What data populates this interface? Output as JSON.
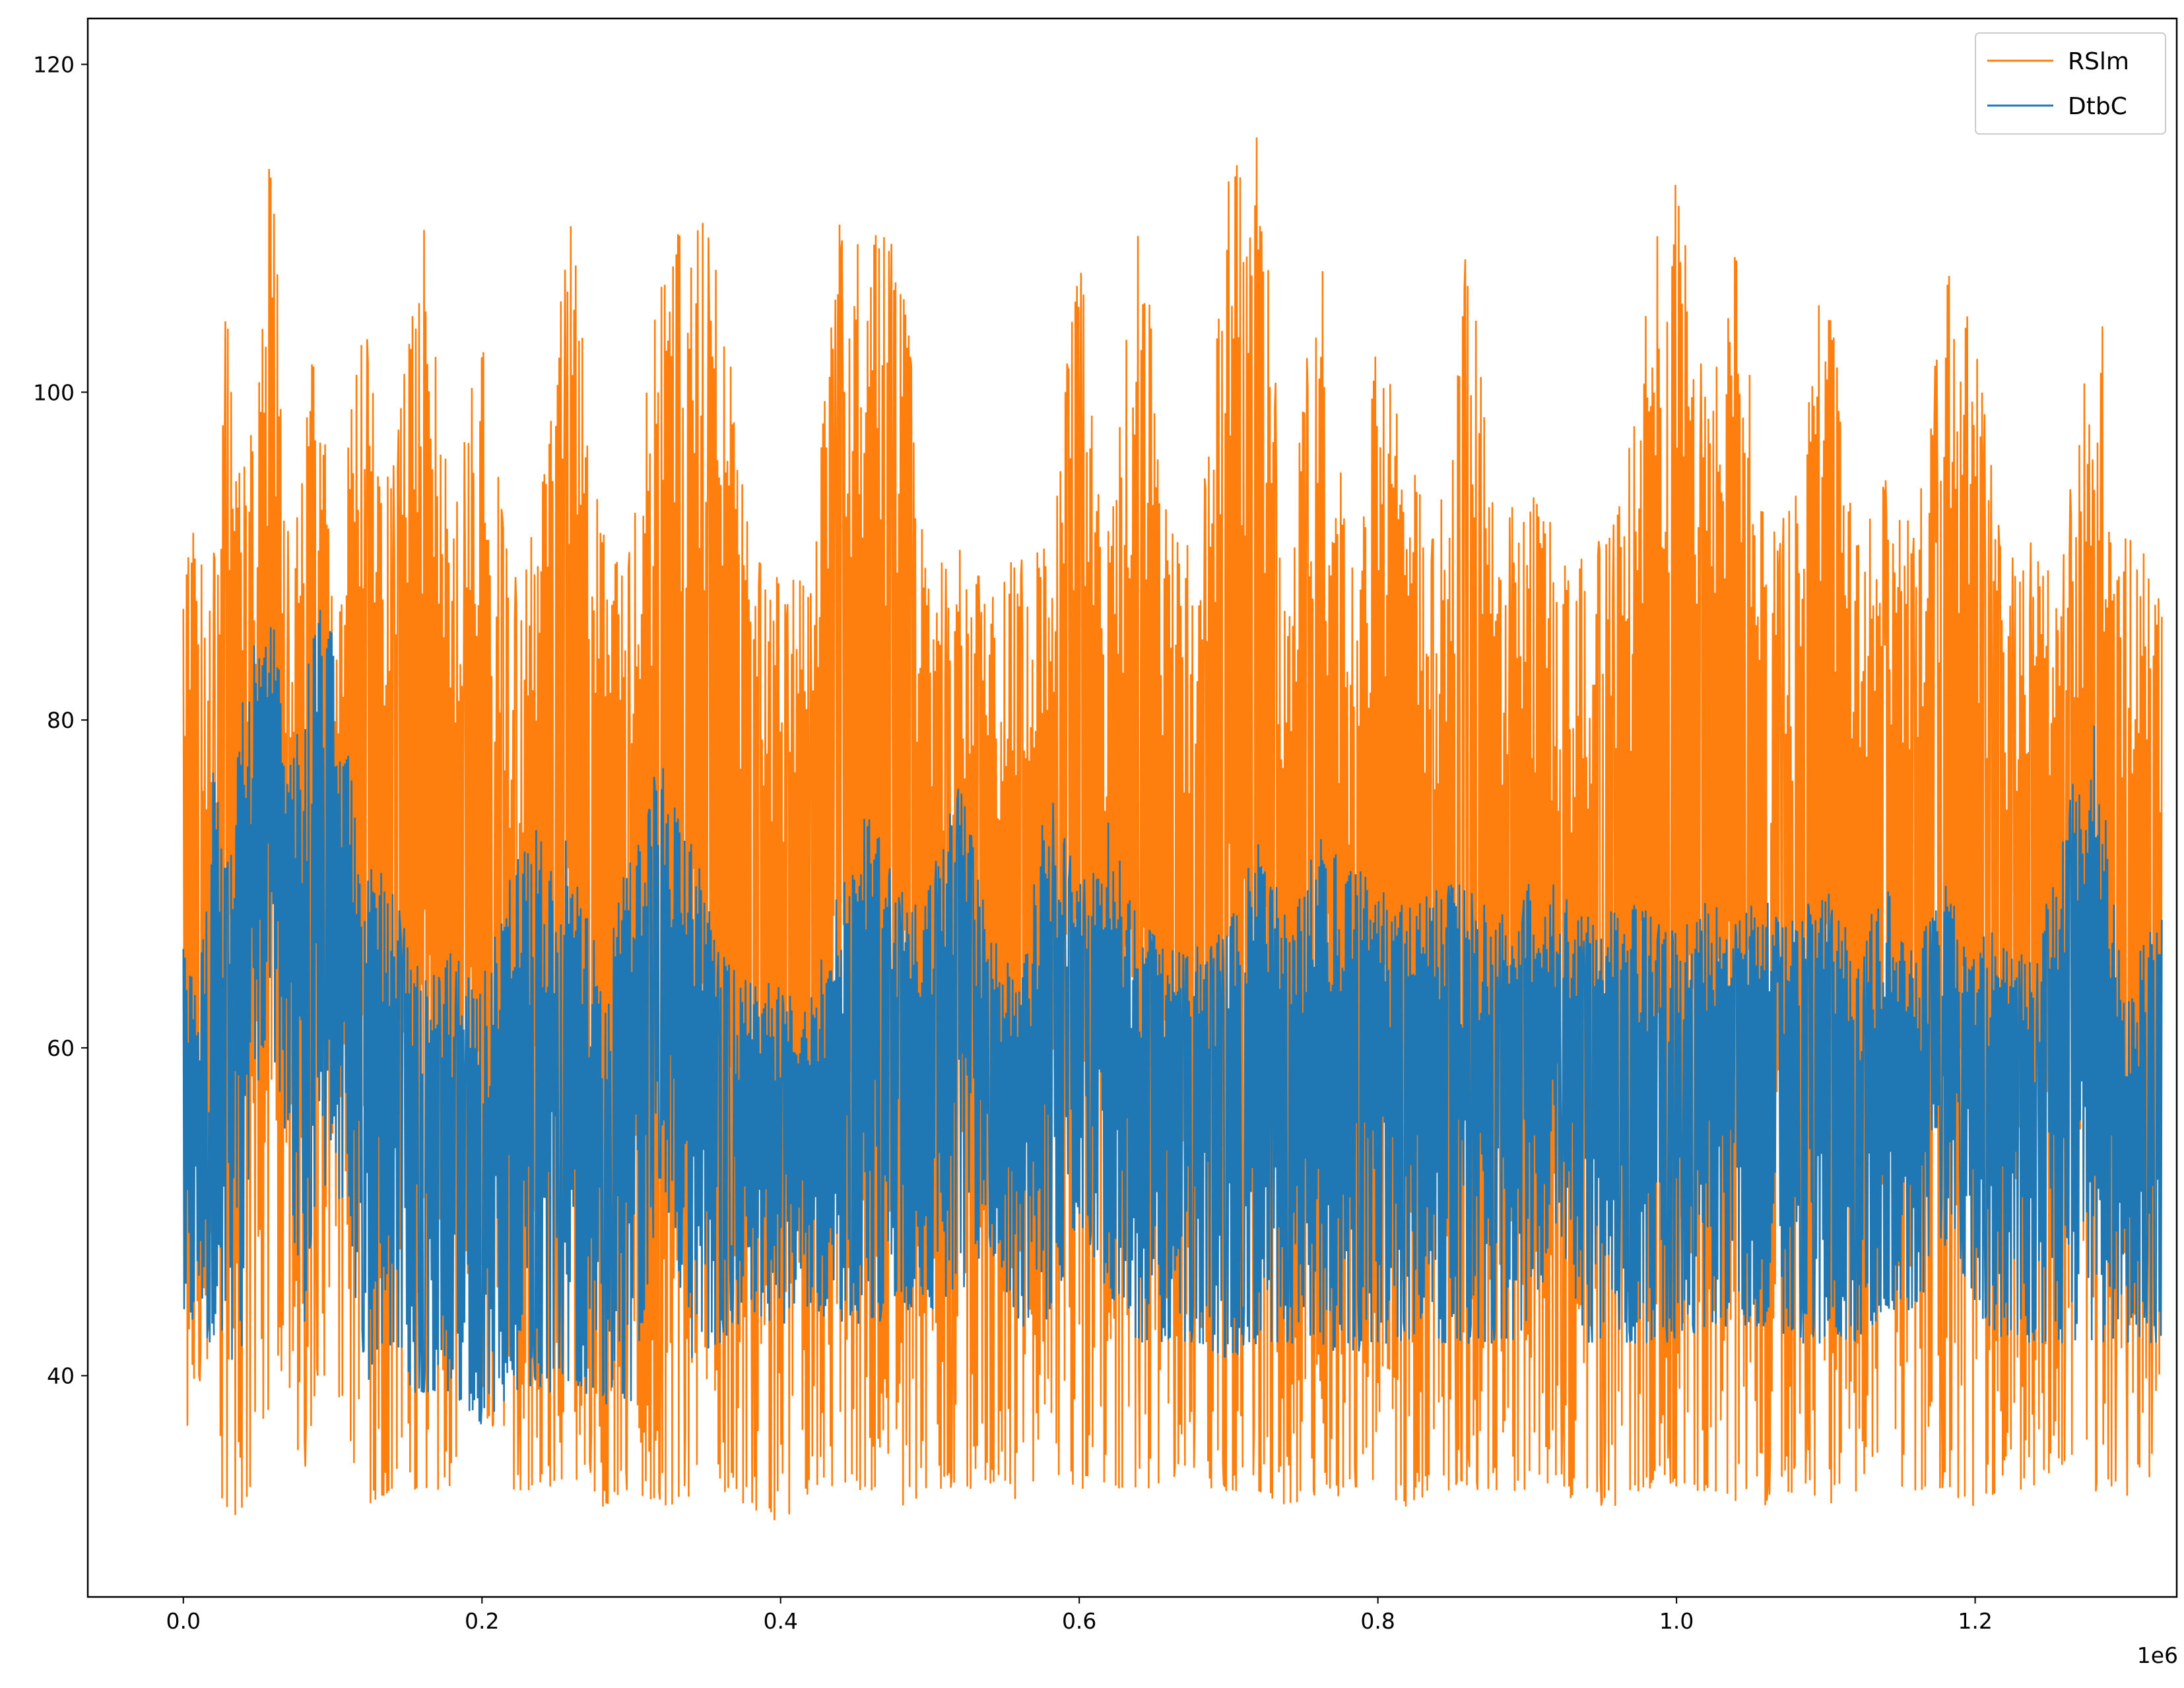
{
  "chart_data": {
    "type": "line",
    "title": "",
    "xlabel": "",
    "ylabel": "",
    "x_offset_label": "1e6",
    "xlim": [
      -0.064,
      1.335
    ],
    "ylim": [
      26.5,
      122.8
    ],
    "x_ticks": [
      0.0,
      0.2,
      0.4,
      0.6,
      0.8,
      1.0,
      1.2
    ],
    "x_tick_labels": [
      "0.0",
      "0.2",
      "0.4",
      "0.6",
      "0.8",
      "1.0",
      "1.2"
    ],
    "y_ticks": [
      40,
      60,
      80,
      100,
      120
    ],
    "y_tick_labels": [
      "40",
      "60",
      "80",
      "100",
      "120"
    ],
    "x_range": [
      0.0,
      1.325
    ],
    "grid": false,
    "legend_position": "upper right",
    "colors": {
      "RSlm": "#ff7f0e",
      "DtbC": "#1f77b4"
    },
    "series": [
      {
        "name": "RSlm",
        "description_x": "x (×1e6)",
        "x": [
          0.0,
          0.01,
          0.02,
          0.03,
          0.04,
          0.05,
          0.06,
          0.07,
          0.08,
          0.09,
          0.1,
          0.12,
          0.14,
          0.16,
          0.18,
          0.2,
          0.22,
          0.24,
          0.26,
          0.28,
          0.3,
          0.32,
          0.34,
          0.36,
          0.38,
          0.4,
          0.42,
          0.44,
          0.46,
          0.48,
          0.5,
          0.52,
          0.54,
          0.56,
          0.58,
          0.6,
          0.62,
          0.64,
          0.66,
          0.68,
          0.7,
          0.72,
          0.74,
          0.76,
          0.78,
          0.8,
          0.82,
          0.84,
          0.86,
          0.88,
          0.9,
          0.92,
          0.94,
          0.96,
          0.98,
          1.0,
          1.02,
          1.04,
          1.06,
          1.08,
          1.1,
          1.12,
          1.14,
          1.16,
          1.18,
          1.2,
          1.22,
          1.24,
          1.26,
          1.28,
          1.3,
          1.32
        ],
        "upper": [
          91,
          92,
          90,
          109,
          98,
          102,
          118,
          92,
          95,
          109,
          88,
          107,
          95,
          111,
          93,
          105,
          88,
          94,
          112,
          92,
          91,
          110,
          112,
          108,
          90,
          89,
          89,
          111,
          110,
          110,
          89,
          91,
          89,
          90,
          91,
          110,
          91,
          113,
          92,
          91,
          113,
          117,
          89,
          112,
          90,
          104,
          97,
          92,
          110,
          91,
          96,
          91,
          91,
          92,
          108,
          113,
          100,
          110,
          91,
          94,
          109,
          91,
          96,
          91,
          108,
          104,
          90,
          91,
          91,
          109,
          91,
          92
        ],
        "lower": [
          33,
          40,
          33,
          31,
          32,
          33,
          40,
          40,
          32,
          40,
          40,
          32,
          33,
          33,
          33,
          38,
          33,
          33,
          34,
          32,
          33,
          32,
          32,
          33,
          32,
          31,
          33,
          33,
          33,
          32,
          33,
          33,
          33,
          32,
          33,
          33,
          33,
          33,
          33,
          33,
          33,
          33,
          32,
          32,
          33,
          33,
          32,
          33,
          33,
          33,
          33,
          33,
          32,
          32,
          33,
          33,
          33,
          32,
          32,
          33,
          32,
          32,
          33,
          33,
          33,
          32,
          33,
          33,
          34,
          33,
          32,
          34
        ]
      },
      {
        "name": "DtbC",
        "description_x": "x (×1e6)",
        "x": [
          0.0,
          0.01,
          0.02,
          0.03,
          0.04,
          0.05,
          0.06,
          0.07,
          0.08,
          0.09,
          0.1,
          0.12,
          0.14,
          0.16,
          0.18,
          0.2,
          0.22,
          0.24,
          0.26,
          0.28,
          0.3,
          0.32,
          0.34,
          0.36,
          0.38,
          0.4,
          0.42,
          0.44,
          0.46,
          0.48,
          0.5,
          0.52,
          0.54,
          0.56,
          0.58,
          0.6,
          0.62,
          0.64,
          0.66,
          0.68,
          0.7,
          0.72,
          0.74,
          0.76,
          0.78,
          0.8,
          0.82,
          0.84,
          0.86,
          0.88,
          0.9,
          0.92,
          0.94,
          0.96,
          0.98,
          1.0,
          1.02,
          1.04,
          1.06,
          1.08,
          1.1,
          1.12,
          1.14,
          1.16,
          1.18,
          1.2,
          1.22,
          1.24,
          1.26,
          1.28,
          1.3,
          1.32
        ],
        "upper": [
          69,
          63,
          77,
          72,
          83,
          86,
          86,
          80,
          82,
          87,
          86,
          72,
          70,
          64,
          66,
          64,
          71,
          74,
          73,
          65,
          73,
          78,
          73,
          66,
          64,
          64,
          63,
          70,
          75,
          70,
          70,
          77,
          67,
          64,
          77,
          70,
          74,
          68,
          66,
          67,
          68,
          73,
          68,
          73,
          71,
          71,
          69,
          70,
          70,
          68,
          70,
          70,
          68,
          69,
          69,
          68,
          69,
          69,
          69,
          68,
          70,
          66,
          70,
          66,
          70,
          67,
          67,
          65,
          75,
          80,
          64,
          68
        ],
        "lower": [
          43,
          42,
          42,
          41,
          41,
          58,
          60,
          53,
          42,
          52,
          50,
          40,
          39,
          39,
          39,
          37,
          39,
          39,
          39,
          38,
          38,
          52,
          41,
          42,
          44,
          43,
          44,
          43,
          43,
          44,
          44,
          45,
          48,
          43,
          43,
          49,
          45,
          42,
          42,
          42,
          41,
          42,
          42,
          42,
          41,
          42,
          42,
          42,
          42,
          42,
          42,
          49,
          42,
          42,
          42,
          42,
          43,
          43,
          43,
          42,
          42,
          42,
          44,
          44,
          48,
          44,
          42,
          42,
          42,
          42,
          42,
          42
        ]
      }
    ]
  }
}
